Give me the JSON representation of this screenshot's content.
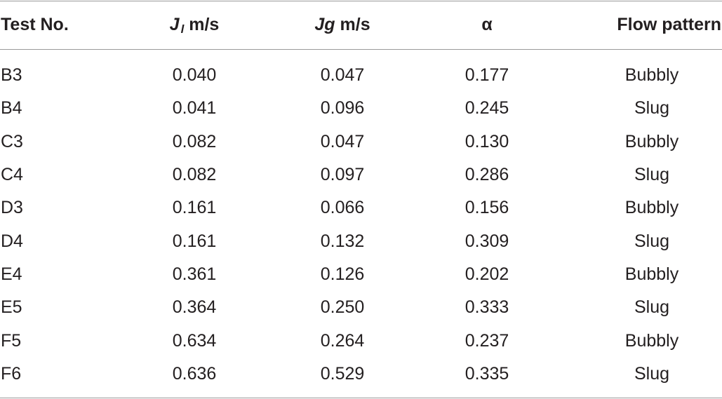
{
  "table": {
    "headers": {
      "test_no": "Test No.",
      "jl_symbol": "J",
      "jl_subscript": "l",
      "jl_unit": "m/s",
      "jg_symbol": "Jg",
      "jg_unit": "m/s",
      "alpha": "α",
      "flow_pattern": "Flow pattern"
    },
    "rows": [
      {
        "test": "B3",
        "jl": "0.040",
        "jg": "0.047",
        "alpha": "0.177",
        "pattern": "Bubbly"
      },
      {
        "test": "B4",
        "jl": "0.041",
        "jg": "0.096",
        "alpha": "0.245",
        "pattern": "Slug"
      },
      {
        "test": "C3",
        "jl": "0.082",
        "jg": "0.047",
        "alpha": "0.130",
        "pattern": "Bubbly"
      },
      {
        "test": "C4",
        "jl": "0.082",
        "jg": "0.097",
        "alpha": "0.286",
        "pattern": "Slug"
      },
      {
        "test": "D3",
        "jl": "0.161",
        "jg": "0.066",
        "alpha": "0.156",
        "pattern": "Bubbly"
      },
      {
        "test": "D4",
        "jl": "0.161",
        "jg": "0.132",
        "alpha": "0.309",
        "pattern": "Slug"
      },
      {
        "test": "E4",
        "jl": "0.361",
        "jg": "0.126",
        "alpha": "0.202",
        "pattern": "Bubbly"
      },
      {
        "test": "E5",
        "jl": "0.364",
        "jg": "0.250",
        "alpha": "0.333",
        "pattern": "Slug"
      },
      {
        "test": "F5",
        "jl": "0.634",
        "jg": "0.264",
        "alpha": "0.237",
        "pattern": "Bubbly"
      },
      {
        "test": "F6",
        "jl": "0.636",
        "jg": "0.529",
        "alpha": "0.335",
        "pattern": "Slug"
      }
    ]
  }
}
